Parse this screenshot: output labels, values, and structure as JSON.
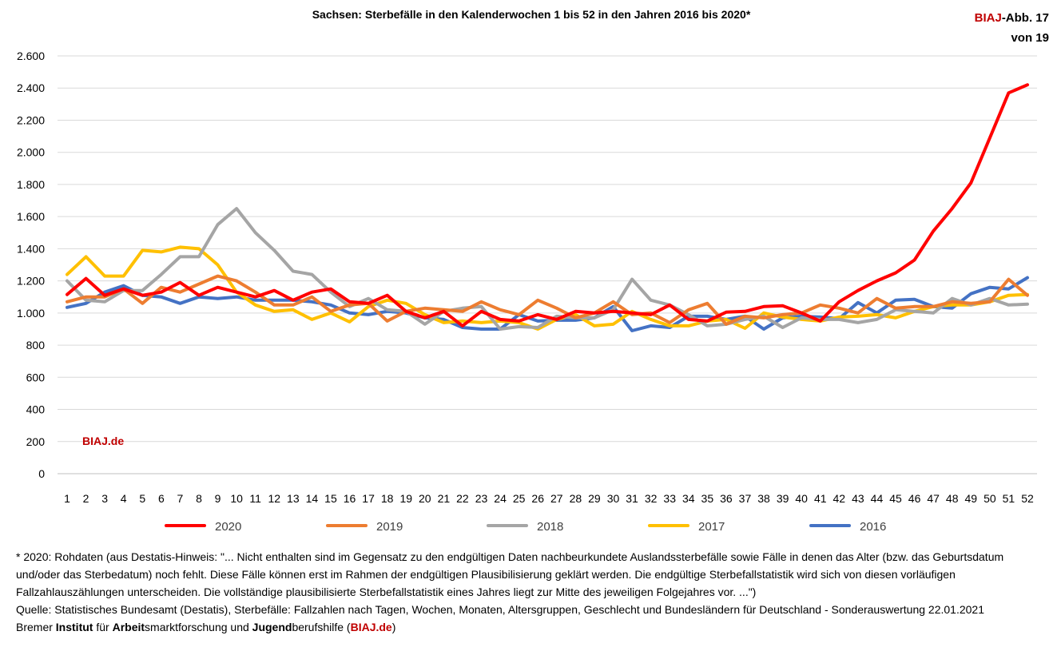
{
  "header": {
    "title": "Sachsen: Sterbefälle in den Kalenderwochen 1 bis 52 in den Jahren 2016 bis 2020*",
    "badge_brand": "BIAJ",
    "badge_suffix": "-Abb. 17",
    "badge_line2": "von 19"
  },
  "chart_data": {
    "type": "line",
    "title": "Sachsen: Sterbefälle in den Kalenderwochen 1 bis 52 in den Jahren 2016 bis 2020*",
    "xlabel": "",
    "ylabel": "",
    "ylim": [
      0,
      2600
    ],
    "yticks": [
      0,
      200,
      400,
      600,
      800,
      1000,
      1200,
      1400,
      1600,
      1800,
      2000,
      2200,
      2400,
      2600
    ],
    "ytick_labels": [
      "0",
      "200",
      "400",
      "600",
      "800",
      "1.000",
      "1.200",
      "1.400",
      "1.600",
      "1.800",
      "2.000",
      "2.200",
      "2.400",
      "2.600"
    ],
    "x": [
      1,
      2,
      3,
      4,
      5,
      6,
      7,
      8,
      9,
      10,
      11,
      12,
      13,
      14,
      15,
      16,
      17,
      18,
      19,
      20,
      21,
      22,
      23,
      24,
      25,
      26,
      27,
      28,
      29,
      30,
      31,
      32,
      33,
      34,
      35,
      36,
      37,
      38,
      39,
      40,
      41,
      42,
      43,
      44,
      45,
      46,
      47,
      48,
      49,
      50,
      51,
      52
    ],
    "grid": true,
    "legend_position": "bottom",
    "watermark": "BIAJ.de",
    "series": [
      {
        "name": "2020",
        "color": "#ff0000",
        "values": [
          1115,
          1215,
          1110,
          1150,
          1110,
          1130,
          1190,
          1110,
          1160,
          1130,
          1100,
          1140,
          1080,
          1130,
          1150,
          1070,
          1060,
          1110,
          1010,
          970,
          1010,
          920,
          1010,
          960,
          950,
          990,
          960,
          1010,
          1000,
          1010,
          1000,
          990,
          1050,
          960,
          950,
          1005,
          1010,
          1040,
          1045,
          1000,
          950,
          1070,
          1140,
          1200,
          1250,
          1330,
          1510,
          1650,
          1810,
          2090,
          2370,
          2420
        ]
      },
      {
        "name": "2019",
        "color": "#ed7d31",
        "values": [
          1070,
          1100,
          1100,
          1150,
          1060,
          1160,
          1130,
          1180,
          1230,
          1200,
          1130,
          1050,
          1050,
          1100,
          1010,
          1050,
          1060,
          950,
          1010,
          1030,
          1020,
          1010,
          1070,
          1020,
          990,
          1080,
          1030,
          970,
          1000,
          1070,
          990,
          1000,
          940,
          1020,
          1060,
          930,
          980,
          970,
          990,
          1000,
          1050,
          1030,
          1000,
          1090,
          1030,
          1040,
          1040,
          1070,
          1060,
          1070,
          1210,
          1110
        ]
      },
      {
        "name": "2018",
        "color": "#a5a5a5",
        "values": [
          1200,
          1080,
          1070,
          1140,
          1140,
          1240,
          1350,
          1350,
          1550,
          1650,
          1500,
          1390,
          1260,
          1240,
          1130,
          1040,
          1090,
          1020,
          1010,
          930,
          1010,
          1030,
          1040,
          900,
          915,
          910,
          980,
          970,
          970,
          1020,
          1210,
          1080,
          1050,
          990,
          920,
          930,
          960,
          980,
          910,
          970,
          960,
          960,
          940,
          960,
          1020,
          1010,
          1000,
          1090,
          1050,
          1090,
          1050,
          1055
        ]
      },
      {
        "name": "2017",
        "color": "#ffc000",
        "values": [
          1240,
          1350,
          1230,
          1230,
          1390,
          1380,
          1410,
          1400,
          1300,
          1130,
          1050,
          1010,
          1020,
          960,
          1000,
          945,
          1040,
          1080,
          1060,
          990,
          940,
          950,
          940,
          950,
          940,
          900,
          960,
          990,
          920,
          930,
          1010,
          960,
          920,
          920,
          950,
          960,
          905,
          1000,
          975,
          960,
          950,
          975,
          980,
          990,
          970,
          1010,
          1040,
          1050,
          1050,
          1070,
          1110,
          1115
        ]
      },
      {
        "name": "2016",
        "color": "#4472c4",
        "values": [
          1035,
          1060,
          1130,
          1170,
          1110,
          1100,
          1060,
          1100,
          1090,
          1100,
          1080,
          1080,
          1080,
          1070,
          1050,
          1000,
          990,
          1010,
          1000,
          970,
          960,
          910,
          900,
          900,
          990,
          950,
          955,
          955,
          970,
          1040,
          890,
          920,
          910,
          980,
          980,
          960,
          980,
          900,
          970,
          980,
          975,
          965,
          1065,
          1000,
          1080,
          1085,
          1040,
          1030,
          1120,
          1160,
          1150,
          1220
        ]
      }
    ]
  },
  "footnotes": {
    "line1": "* 2020: Rohdaten (aus Destatis-Hinweis: \"... Nicht enthalten sind im Gegensatz zu den endgültigen Daten nachbeurkundete Auslandssterbefälle sowie Fälle in denen das Alter (bzw. das Geburtsdatum und/oder das Sterbedatum) noch fehlt. Diese Fälle können erst im Rahmen der endgültigen Plausibilisierung geklärt werden. Die endgültige Sterbefallstatistik wird sich von diesen vorläufigen Fallzahlauszählungen unterscheiden. Die vollständige plausibilisierte Sterbefallstatistik eines Jahres liegt zur Mitte des jeweiligen Folgejahres vor. ...\")",
    "line2": "Quelle: Statistisches Bundesamt (Destatis), Sterbefälle: Fallzahlen nach Tagen, Wochen, Monaten, Altersgruppen, Geschlecht und Bundesländern für Deutschland - Sonderauswertung 22.01.2021",
    "credit_1": "Bremer ",
    "credit_2": "Institut",
    "credit_3": " für ",
    "credit_4": "Arbeit",
    "credit_5": "smarktforschung und ",
    "credit_6": "Jugend",
    "credit_7": "berufshilfe (",
    "credit_8": "BIAJ.de",
    "credit_9": ")"
  },
  "colors": {
    "grid": "#d9d9d9",
    "axis": "#bfbfbf",
    "brand_red": "#c00000"
  }
}
